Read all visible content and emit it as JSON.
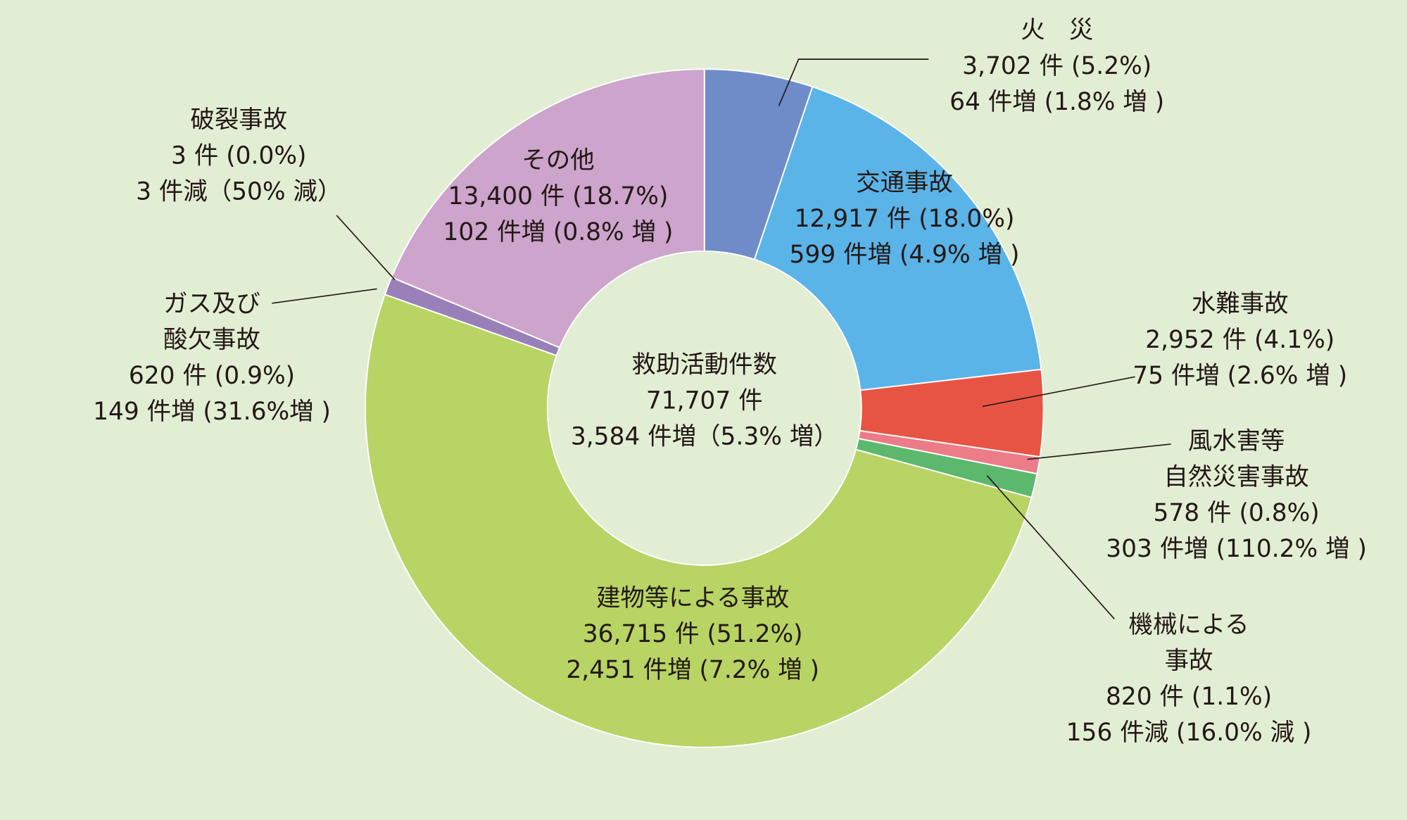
{
  "chart_data": {
    "type": "donut",
    "center_text": [
      "救助活動件数",
      "71,707 件",
      "3,584 件増（5.3% 増）"
    ],
    "categories": [
      [
        "火　災"
      ],
      [
        "交通事故"
      ],
      [
        "水難事故"
      ],
      [
        "風水害等",
        "自然災害事故"
      ],
      [
        "機械による",
        "事故"
      ],
      [
        "建物等による事故"
      ],
      [
        "ガス及び",
        "酸欠事故"
      ],
      [
        "破裂事故"
      ],
      [
        "その他"
      ]
    ],
    "values": [
      3702,
      12917,
      2952,
      578,
      820,
      36715,
      620,
      3,
      13400
    ],
    "value_labels": [
      "3,702 件 (5.2%)",
      "12,917 件 (18.0%)",
      "2,952 件 (4.1%)",
      "578 件 (0.8%)",
      "820 件 (1.1%)",
      "36,715 件 (51.2%)",
      "620 件 (0.9%)",
      "3 件 (0.0%)",
      "13,400 件 (18.7%)"
    ],
    "changes": [
      "64 件増 (1.8% 増 )",
      "599 件増 (4.9% 増 )",
      "75 件増 (2.6% 増 )",
      "303 件増 (110.2% 増 )",
      "156 件減 (16.0% 減 )",
      "2,451 件増 (7.2% 増 )",
      "149 件増 (31.6%増 )",
      "3 件減（50% 減）",
      "102 件増 (0.8% 増 )"
    ],
    "colors": [
      "#6f8cc8",
      "#5bb4e8",
      "#e85444",
      "#ec7c88",
      "#5cb86c",
      "#b8d464",
      "#9a80b8",
      "#b0a0c8",
      "#cca4cc"
    ]
  }
}
